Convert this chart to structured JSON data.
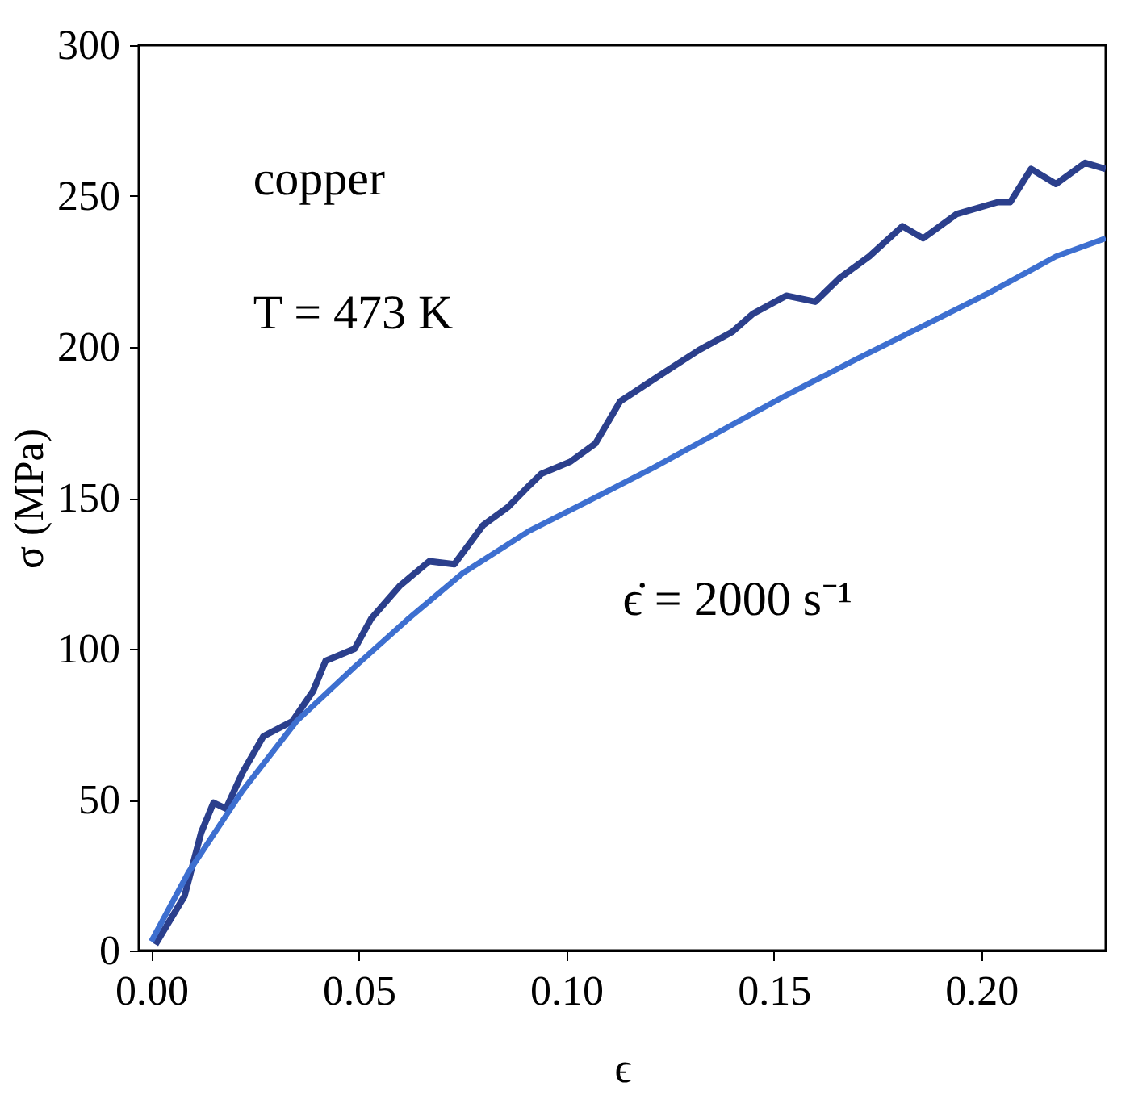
{
  "chart_data": {
    "type": "line",
    "xlabel": "ϵ",
    "ylabel": "σ (MPa)",
    "xlim": [
      -0.003,
      0.23
    ],
    "ylim": [
      0,
      300
    ],
    "xticks": [
      {
        "value": 0,
        "label": "0.00"
      },
      0.05,
      {
        "value": 0.1,
        "label": "0.10"
      },
      0.15,
      {
        "value": 0.2,
        "label": "0.20"
      }
    ],
    "yticks": [
      0,
      50,
      100,
      150,
      200,
      250,
      300
    ],
    "grid": false,
    "legend": false,
    "marker": "none",
    "line_style": "solid",
    "annotations": [
      "copper",
      "T = 473 K",
      "ϵ̇ = 2000 s⁻¹"
    ],
    "series": [
      {
        "color": "#2b3f8c",
        "x": [
          0.001,
          0.008,
          0.012,
          0.015,
          0.018,
          0.022,
          0.027,
          0.034,
          0.039,
          0.042,
          0.049,
          0.053,
          0.06,
          0.067,
          0.073,
          0.08,
          0.086,
          0.091,
          0.094,
          0.101,
          0.107,
          0.113,
          0.123,
          0.132,
          0.14,
          0.145,
          0.153,
          0.16,
          0.166,
          0.173,
          0.181,
          0.186,
          0.194,
          0.204,
          0.207,
          0.212,
          0.218,
          0.225,
          0.23
        ],
        "values": [
          2,
          18,
          39,
          49,
          47,
          59,
          71,
          76,
          86,
          96,
          100,
          110,
          121,
          129,
          128,
          141,
          147,
          154,
          158,
          162,
          168,
          182,
          191,
          199,
          205,
          211,
          217,
          215,
          223,
          230,
          240,
          236,
          244,
          248,
          248,
          259,
          254,
          261,
          259
        ]
      },
      {
        "color": "#3d6fd0",
        "x": [
          0.0,
          0.009,
          0.022,
          0.035,
          0.049,
          0.062,
          0.075,
          0.091,
          0.104,
          0.121,
          0.137,
          0.153,
          0.17,
          0.186,
          0.202,
          0.218,
          0.23
        ],
        "values": [
          3,
          26,
          53,
          76,
          94,
          110,
          125,
          139,
          148,
          160,
          172,
          184,
          196,
          207,
          218,
          230,
          236
        ]
      }
    ]
  }
}
